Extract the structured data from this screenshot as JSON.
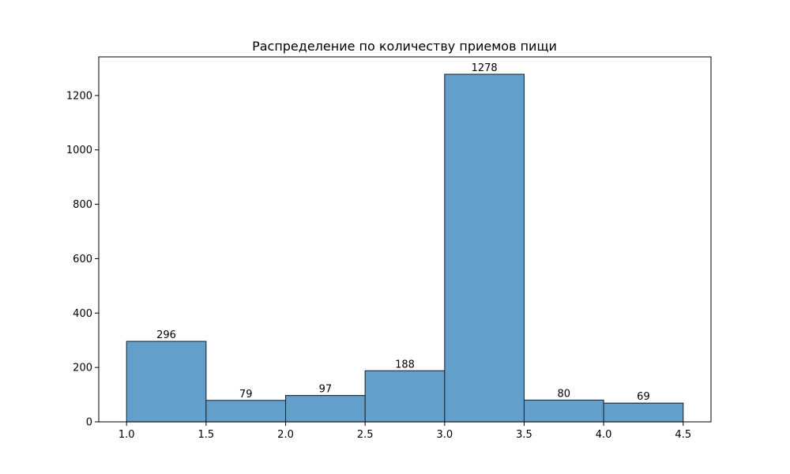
{
  "chart_data": {
    "type": "bar",
    "title": "Распределение по количеству приемов пищи",
    "xlabel": "",
    "ylabel": "",
    "bins": [
      {
        "x0": 1.0,
        "x1": 1.5,
        "count": 296
      },
      {
        "x0": 1.5,
        "x1": 2.0,
        "count": 79
      },
      {
        "x0": 2.0,
        "x1": 2.5,
        "count": 97
      },
      {
        "x0": 2.5,
        "x1": 3.0,
        "count": 188
      },
      {
        "x0": 3.0,
        "x1": 3.5,
        "count": 1278
      },
      {
        "x0": 3.5,
        "x1": 4.0,
        "count": 80
      },
      {
        "x0": 4.0,
        "x1": 4.5,
        "count": 69
      }
    ],
    "x_ticks": [
      "1.0",
      "1.5",
      "2.0",
      "2.5",
      "3.0",
      "3.5",
      "4.0",
      "4.5"
    ],
    "y_ticks": [
      "0",
      "200",
      "400",
      "600",
      "800",
      "1000",
      "1200"
    ],
    "xlim": [
      0.825,
      4.675
    ],
    "ylim": [
      0,
      1342
    ],
    "bar_color": "#62a0cb",
    "edge_color": "#1f2a36",
    "grid": false,
    "legend": "none"
  }
}
